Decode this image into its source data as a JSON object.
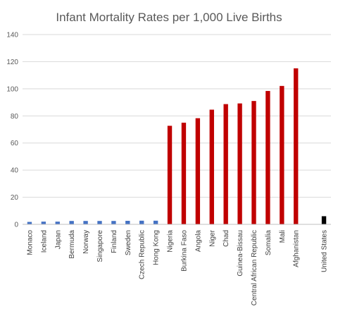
{
  "chart_data": {
    "type": "bar",
    "title": "Infant Mortality Rates per 1,000 Live Births",
    "xlabel": "",
    "ylabel": "",
    "ylim": [
      0,
      140
    ],
    "yticks": [
      0,
      20,
      40,
      60,
      80,
      100,
      120,
      140
    ],
    "grid": true,
    "legend": "none",
    "categories": [
      "Monaco",
      "Iceland",
      "Japan",
      "Bermuda",
      "Norway",
      "Singapore",
      "Finland",
      "Sweden",
      "Czech Republic",
      "Hong Kong",
      "Nigeria",
      "Burkina Faso",
      "Angola",
      "Niger",
      "Chad",
      "Guinea-Bissau",
      "Central African Republic",
      "Somalia",
      "Mali",
      "Afghanistan",
      "",
      "United States"
    ],
    "values": [
      1.8,
      2.0,
      2.0,
      2.5,
      2.5,
      2.5,
      2.5,
      2.6,
      2.7,
      2.7,
      72.7,
      75.0,
      78.3,
      84.6,
      88.7,
      89.2,
      91.0,
      98.4,
      102.1,
      115.1,
      null,
      6.0
    ],
    "colors": [
      "#4472c4",
      "#4472c4",
      "#4472c4",
      "#4472c4",
      "#4472c4",
      "#4472c4",
      "#4472c4",
      "#4472c4",
      "#4472c4",
      "#4472c4",
      "#c00000",
      "#c00000",
      "#c00000",
      "#c00000",
      "#c00000",
      "#c00000",
      "#c00000",
      "#c00000",
      "#c00000",
      "#c00000",
      "#ffffff",
      "#000000"
    ]
  }
}
